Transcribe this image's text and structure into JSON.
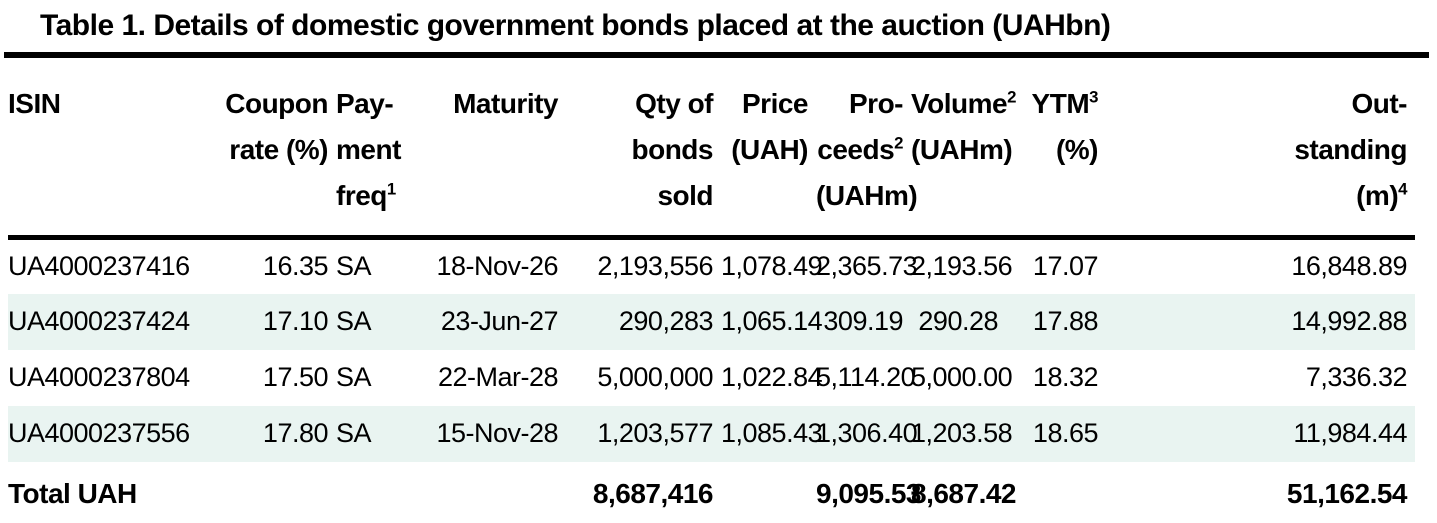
{
  "title": "Table 1. Details of domestic government bonds placed at the auction (UAHbn)",
  "colors": {
    "background": "#ffffff",
    "text": "#000000",
    "rule": "#000000",
    "row_stripe": "#e9f4f1"
  },
  "table": {
    "columns": [
      {
        "id": "isin",
        "align": "left",
        "lines": [
          {
            "t": "ISIN"
          }
        ]
      },
      {
        "id": "coupon-rate",
        "align": "right",
        "lines": [
          {
            "t": "Coupon"
          },
          {
            "t": "rate (%)"
          }
        ]
      },
      {
        "id": "payment-freq",
        "align": "left",
        "lines": [
          {
            "t": "Pay-"
          },
          {
            "t": "ment"
          },
          {
            "t": "freq",
            "s": "1"
          }
        ]
      },
      {
        "id": "maturity",
        "align": "right",
        "lines": [
          {
            "t": "Maturity"
          }
        ]
      },
      {
        "id": "qty-of-bonds-sold",
        "align": "right",
        "lines": [
          {
            "t": "Qty of"
          },
          {
            "t": "bonds"
          },
          {
            "t": "sold"
          }
        ]
      },
      {
        "id": "price-uah",
        "align": "right",
        "lines": [
          {
            "t": "Price"
          },
          {
            "t": "(UAH)"
          }
        ]
      },
      {
        "id": "proceeds-uahm",
        "align": "right",
        "lines": [
          {
            "t": "Pro-"
          },
          {
            "t": "ceeds",
            "s": "2"
          },
          {
            "t": "(UAHm)"
          }
        ]
      },
      {
        "id": "volume-uahm",
        "align": "right",
        "lines": [
          {
            "t": "Volume",
            "s": "2"
          },
          {
            "t": "(UAHm)"
          }
        ]
      },
      {
        "id": "ytm-pct",
        "align": "right",
        "lines": [
          {
            "t": "YTM",
            "s": "3"
          },
          {
            "t": "(%)"
          }
        ]
      },
      {
        "id": "outstanding-m",
        "align": "right",
        "lines": [
          {
            "t": "Out-"
          },
          {
            "t": "standing"
          },
          {
            "t": "(m)",
            "s": "4"
          }
        ]
      }
    ],
    "rows": [
      [
        "UA4000237416",
        "16.35",
        "SA",
        "18-Nov-26",
        "2,193,556",
        "1,078.49",
        "2,365.73",
        "2,193.56",
        "17.07",
        "16,848.89"
      ],
      [
        "UA4000237424",
        "17.10",
        "SA",
        "23-Jun-27",
        "290,283",
        "1,065.14",
        "309.19",
        "290.28",
        "17.88",
        "14,992.88"
      ],
      [
        "UA4000237804",
        "17.50",
        "SA",
        "22-Mar-28",
        "5,000,000",
        "1,022.84",
        "5,114.20",
        "5,000.00",
        "18.32",
        "7,336.32"
      ],
      [
        "UA4000237556",
        "17.80",
        "SA",
        "15-Nov-28",
        "1,203,577",
        "1,085.43",
        "1,306.40",
        "1,203.58",
        "18.65",
        "11,984.44"
      ]
    ],
    "total": [
      "Total UAH",
      "",
      "",
      "",
      "8,687,416",
      "",
      "9,095.53",
      "8,687.42",
      "",
      "51,162.54"
    ]
  },
  "chart_data": {
    "type": "table",
    "title": "Table 1. Details of domestic government bonds placed at the auction (UAHbn)",
    "columns": [
      "ISIN",
      "Coupon rate (%)",
      "Payment freq¹",
      "Maturity",
      "Qty of bonds sold",
      "Price (UAH)",
      "Proceeds² (UAHm)",
      "Volume² (UAHm)",
      "YTM³ (%)",
      "Outstanding (m)⁴"
    ],
    "rows": [
      [
        "UA4000237416",
        16.35,
        "SA",
        "18-Nov-26",
        2193556,
        1078.49,
        2365.73,
        2193.56,
        17.07,
        16848.89
      ],
      [
        "UA4000237424",
        17.1,
        "SA",
        "23-Jun-27",
        290283,
        1065.14,
        309.19,
        290.28,
        17.88,
        14992.88
      ],
      [
        "UA4000237804",
        17.5,
        "SA",
        "22-Mar-28",
        5000000,
        1022.84,
        5114.2,
        5000.0,
        18.32,
        7336.32
      ],
      [
        "UA4000237556",
        17.8,
        "SA",
        "15-Nov-28",
        1203577,
        1085.43,
        1306.4,
        1203.58,
        18.65,
        11984.44
      ]
    ],
    "total_row": [
      "Total UAH",
      null,
      null,
      null,
      8687416,
      null,
      9095.53,
      8687.42,
      null,
      51162.54
    ]
  }
}
